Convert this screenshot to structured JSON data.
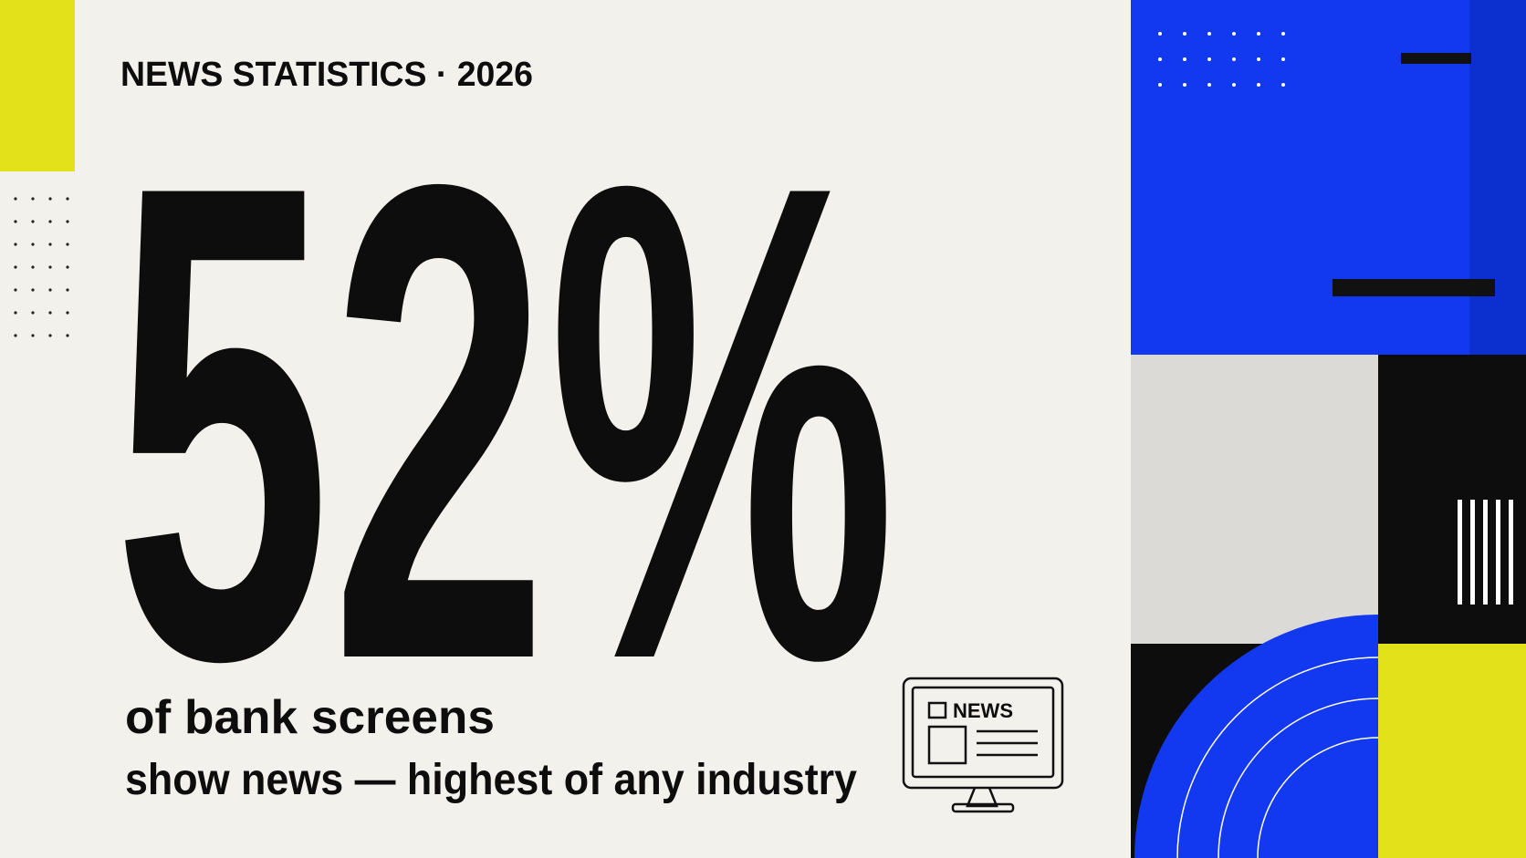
{
  "header": {
    "kicker": "NEWS STATISTICS · 2026"
  },
  "stat": {
    "figure": "52%",
    "line1": "of bank screens",
    "line2": "show news — highest of any industry"
  },
  "icon": {
    "label": "NEWS"
  }
}
